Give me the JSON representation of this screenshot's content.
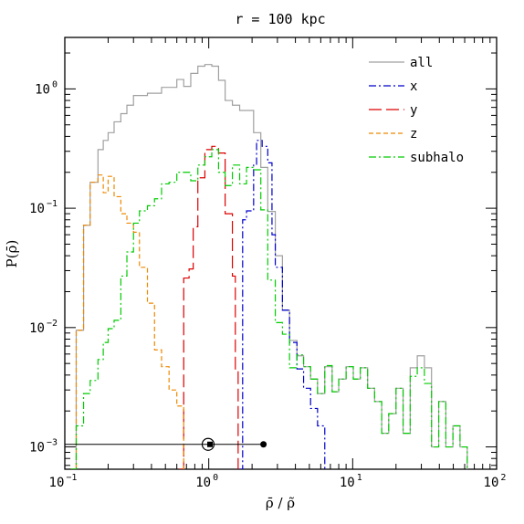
{
  "chart_data": {
    "type": "line",
    "title": "r = 100 kpc",
    "xlabel": "ρ̄ / ρ̃",
    "ylabel": "P(ρ̄)",
    "xscale": "log",
    "yscale": "log",
    "xlim": [
      0.1,
      100
    ],
    "ylim": [
      0.00065,
      2.7
    ],
    "grid": false,
    "legend_position": "top-right",
    "x_ticks": [
      {
        "base": "10",
        "exp": "−1"
      },
      {
        "base": "10",
        "exp": "0"
      },
      {
        "base": "10",
        "exp": "1"
      },
      {
        "base": "10",
        "exp": "2"
      }
    ],
    "y_ticks": [
      {
        "base": "10",
        "exp": "−3"
      },
      {
        "base": "10",
        "exp": "−2"
      },
      {
        "base": "10",
        "exp": "−1"
      },
      {
        "base": "10",
        "exp": "0"
      }
    ],
    "series": [
      {
        "name": "all",
        "color": "#a0a0a0",
        "dash": "",
        "steps": [
          [
            0.11,
            0.00065
          ],
          [
            0.12,
            0.0095
          ],
          [
            0.135,
            0.072
          ],
          [
            0.15,
            0.165
          ],
          [
            0.17,
            0.31
          ],
          [
            0.185,
            0.37
          ],
          [
            0.2,
            0.43
          ],
          [
            0.22,
            0.53
          ],
          [
            0.245,
            0.62
          ],
          [
            0.27,
            0.73
          ],
          [
            0.3,
            0.88
          ],
          [
            0.33,
            0.88
          ],
          [
            0.375,
            0.92
          ],
          [
            0.42,
            0.92
          ],
          [
            0.47,
            1.03
          ],
          [
            0.53,
            1.03
          ],
          [
            0.6,
            1.2
          ],
          [
            0.67,
            1.05
          ],
          [
            0.75,
            1.35
          ],
          [
            0.84,
            1.55
          ],
          [
            0.94,
            1.6
          ],
          [
            1.05,
            1.55
          ],
          [
            1.17,
            1.18
          ],
          [
            1.3,
            0.8
          ],
          [
            1.46,
            0.73
          ],
          [
            1.64,
            0.66
          ],
          [
            1.83,
            0.66
          ],
          [
            2.05,
            0.43
          ],
          [
            2.3,
            0.22
          ],
          [
            2.57,
            0.094
          ],
          [
            2.9,
            0.04
          ],
          [
            3.25,
            0.014
          ],
          [
            3.64,
            0.0078
          ],
          [
            4.1,
            0.0058
          ],
          [
            4.56,
            0.0047
          ],
          [
            5.1,
            0.0037
          ],
          [
            5.7,
            0.0028
          ],
          [
            6.4,
            0.0047
          ],
          [
            7.2,
            0.0029
          ],
          [
            8.0,
            0.0037
          ],
          [
            9.0,
            0.0047
          ],
          [
            10.1,
            0.0037
          ],
          [
            11.3,
            0.0046
          ],
          [
            12.7,
            0.0031
          ],
          [
            14.2,
            0.0024
          ],
          [
            15.9,
            0.0013
          ],
          [
            17.8,
            0.0019
          ],
          [
            20,
            0.0031
          ],
          [
            22.4,
            0.0013
          ],
          [
            25.1,
            0.0046
          ],
          [
            28.1,
            0.0058
          ],
          [
            31.5,
            0.0046
          ],
          [
            35.3,
            0.001
          ],
          [
            39.6,
            0.0024
          ],
          [
            44.4,
            0.001
          ],
          [
            49.7,
            0.0015
          ],
          [
            55.7,
            0.001
          ],
          [
            62.5,
            0.00065
          ]
        ]
      },
      {
        "name": "x",
        "color": "#0000cc",
        "dash": "8 3 2 3",
        "steps": [
          [
            1.64,
            0.00065
          ],
          [
            1.72,
            0.08
          ],
          [
            1.83,
            0.095
          ],
          [
            2.05,
            0.23
          ],
          [
            2.15,
            0.37
          ],
          [
            2.35,
            0.33
          ],
          [
            2.57,
            0.24
          ],
          [
            2.75,
            0.06
          ],
          [
            2.9,
            0.032
          ],
          [
            3.25,
            0.014
          ],
          [
            3.64,
            0.0075
          ],
          [
            4.1,
            0.0045
          ],
          [
            4.56,
            0.0031
          ],
          [
            5.1,
            0.0021
          ],
          [
            5.7,
            0.0015
          ],
          [
            6.4,
            0.00065
          ]
        ]
      },
      {
        "name": "y",
        "color": "#dd0000",
        "dash": "14 5",
        "steps": [
          [
            0.62,
            0.00065
          ],
          [
            0.67,
            0.026
          ],
          [
            0.73,
            0.031
          ],
          [
            0.78,
            0.07
          ],
          [
            0.84,
            0.18
          ],
          [
            0.94,
            0.31
          ],
          [
            1.05,
            0.33
          ],
          [
            1.17,
            0.29
          ],
          [
            1.3,
            0.09
          ],
          [
            1.46,
            0.027
          ],
          [
            1.53,
            0.0045
          ],
          [
            1.6,
            0.00065
          ]
        ]
      },
      {
        "name": "z",
        "color": "#ee8800",
        "dash": "5 3",
        "steps": [
          [
            0.11,
            0.00065
          ],
          [
            0.12,
            0.0095
          ],
          [
            0.135,
            0.072
          ],
          [
            0.15,
            0.165
          ],
          [
            0.17,
            0.19
          ],
          [
            0.185,
            0.135
          ],
          [
            0.2,
            0.185
          ],
          [
            0.22,
            0.125
          ],
          [
            0.245,
            0.09
          ],
          [
            0.27,
            0.075
          ],
          [
            0.3,
            0.063
          ],
          [
            0.33,
            0.032
          ],
          [
            0.375,
            0.016
          ],
          [
            0.42,
            0.0065
          ],
          [
            0.47,
            0.0047
          ],
          [
            0.53,
            0.003
          ],
          [
            0.6,
            0.0022
          ],
          [
            0.67,
            0.00065
          ]
        ]
      },
      {
        "name": "subhalo",
        "color": "#00cc00",
        "dash": "8 3 2 3",
        "steps": [
          [
            0.11,
            0.00065
          ],
          [
            0.12,
            0.0015
          ],
          [
            0.135,
            0.0028
          ],
          [
            0.15,
            0.0036
          ],
          [
            0.17,
            0.0054
          ],
          [
            0.185,
            0.0075
          ],
          [
            0.2,
            0.0098
          ],
          [
            0.22,
            0.0115
          ],
          [
            0.245,
            0.027
          ],
          [
            0.27,
            0.043
          ],
          [
            0.3,
            0.075
          ],
          [
            0.33,
            0.095
          ],
          [
            0.375,
            0.105
          ],
          [
            0.42,
            0.12
          ],
          [
            0.47,
            0.16
          ],
          [
            0.53,
            0.165
          ],
          [
            0.6,
            0.2
          ],
          [
            0.67,
            0.2
          ],
          [
            0.75,
            0.17
          ],
          [
            0.84,
            0.23
          ],
          [
            0.94,
            0.27
          ],
          [
            1.05,
            0.31
          ],
          [
            1.17,
            0.2
          ],
          [
            1.3,
            0.155
          ],
          [
            1.46,
            0.23
          ],
          [
            1.64,
            0.16
          ],
          [
            1.83,
            0.22
          ],
          [
            2.05,
            0.21
          ],
          [
            2.3,
            0.097
          ],
          [
            2.57,
            0.025
          ],
          [
            2.9,
            0.011
          ],
          [
            3.25,
            0.0088
          ],
          [
            3.64,
            0.0046
          ],
          [
            4.1,
            0.0059
          ],
          [
            4.56,
            0.0047
          ],
          [
            5.1,
            0.0037
          ],
          [
            5.7,
            0.0028
          ],
          [
            6.4,
            0.0048
          ],
          [
            7.2,
            0.0029
          ],
          [
            8.0,
            0.0037
          ],
          [
            9.0,
            0.0047
          ],
          [
            10.1,
            0.0037
          ],
          [
            11.3,
            0.0046
          ],
          [
            12.7,
            0.0031
          ],
          [
            14.2,
            0.0024
          ],
          [
            15.9,
            0.0013
          ],
          [
            17.8,
            0.0019
          ],
          [
            20,
            0.0031
          ],
          [
            22.4,
            0.0013
          ],
          [
            25.1,
            0.0039
          ],
          [
            28.1,
            0.0046
          ],
          [
            31.5,
            0.0034
          ],
          [
            35.3,
            0.001
          ],
          [
            39.6,
            0.0024
          ],
          [
            44.4,
            0.001
          ],
          [
            49.7,
            0.0015
          ],
          [
            55.7,
            0.001
          ],
          [
            62.5,
            0.00065
          ]
        ]
      }
    ],
    "markers": {
      "line_y": 0.00105,
      "line_x": [
        0.1,
        2.4
      ],
      "open_circle_x": 0.99,
      "square_x": 1.02,
      "filled_circle_x": 2.4,
      "color": "#000000"
    }
  }
}
